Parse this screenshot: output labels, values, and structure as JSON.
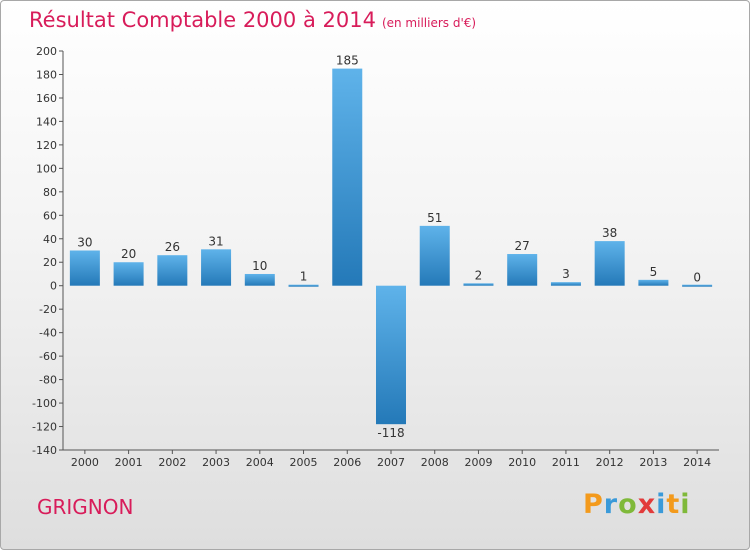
{
  "header": {
    "title": "Résultat Comptable 2000 à 2014",
    "subtitle": "(en milliers d'€)"
  },
  "footer": {
    "place": "GRIGNON",
    "brand": "Proxiti"
  },
  "colors": {
    "title": "#d81c5a",
    "bar_top": "#5fb3ea",
    "bar_bottom": "#2479b8",
    "axis": "#555555"
  },
  "chart_data": {
    "type": "bar",
    "title": "Résultat Comptable 2000 à 2014",
    "subtitle": "(en milliers d'€)",
    "categories": [
      "2000",
      "2001",
      "2002",
      "2003",
      "2004",
      "2005",
      "2006",
      "2007",
      "2008",
      "2009",
      "2010",
      "2011",
      "2012",
      "2013",
      "2014"
    ],
    "values": [
      30,
      20,
      26,
      31,
      10,
      1,
      185,
      -118,
      51,
      2,
      27,
      3,
      38,
      5,
      0
    ],
    "ylim": [
      -140,
      200
    ],
    "yticks": [
      200,
      180,
      160,
      140,
      120,
      100,
      80,
      60,
      40,
      20,
      0,
      -20,
      -40,
      -60,
      -80,
      -100,
      -120,
      -140
    ],
    "grid": false,
    "legend": "none"
  }
}
